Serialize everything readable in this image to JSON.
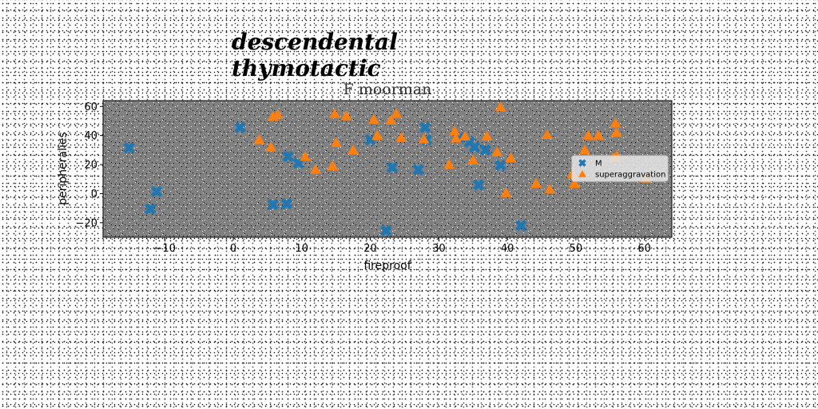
{
  "figure_title": "descendental thymotactic",
  "chart_data": {
    "type": "scatter",
    "title": "F moorman",
    "xlabel": "fireproof",
    "ylabel": "peripheralies",
    "xlim": [
      -19,
      64
    ],
    "ylim": [
      -30,
      64
    ],
    "xticks": [
      -10,
      0,
      10,
      20,
      30,
      40,
      50,
      60
    ],
    "yticks": [
      -20,
      0,
      20,
      40,
      60
    ],
    "xtick_labels": [
      "−10",
      "0",
      "10",
      "20",
      "30",
      "40",
      "50",
      "60"
    ],
    "ytick_labels": [
      "−20",
      "0",
      "20",
      "40",
      "60"
    ],
    "grid": false,
    "legend_position": "center-right",
    "series": [
      {
        "name": "M",
        "marker": "X",
        "color": "#1f77b4",
        "points": [
          [
            -15.2,
            31.5
          ],
          [
            -12.1,
            -10.5
          ],
          [
            -11.2,
            1.5
          ],
          [
            1.0,
            45.5
          ],
          [
            5.8,
            -7.5
          ],
          [
            7.8,
            -7.0
          ],
          [
            8.0,
            25.5
          ],
          [
            9.5,
            21.0
          ],
          [
            20.0,
            37.0
          ],
          [
            22.3,
            -25.5
          ],
          [
            23.2,
            18.0
          ],
          [
            27.0,
            16.5
          ],
          [
            28.0,
            45.5
          ],
          [
            28.2,
            37.0
          ],
          [
            33.0,
            38.5
          ],
          [
            34.5,
            35.5
          ],
          [
            35.2,
            32.0
          ],
          [
            35.8,
            6.0
          ],
          [
            36.8,
            30.0
          ],
          [
            39.0,
            19.5
          ],
          [
            42.0,
            -22.0
          ]
        ]
      },
      {
        "name": "superaggravation",
        "marker": "^",
        "color": "#ff7f0e",
        "points": [
          [
            3.8,
            37.0
          ],
          [
            5.5,
            32.0
          ],
          [
            5.8,
            53.0
          ],
          [
            6.5,
            54.5
          ],
          [
            10.5,
            25.5
          ],
          [
            12.0,
            16.5
          ],
          [
            14.5,
            19.0
          ],
          [
            14.8,
            55.0
          ],
          [
            15.0,
            35.0
          ],
          [
            16.5,
            53.5
          ],
          [
            17.5,
            30.0
          ],
          [
            20.5,
            51.0
          ],
          [
            21.0,
            40.0
          ],
          [
            23.0,
            50.5
          ],
          [
            23.8,
            55.0
          ],
          [
            24.5,
            38.5
          ],
          [
            27.8,
            37.5
          ],
          [
            31.5,
            20.0
          ],
          [
            32.3,
            43.0
          ],
          [
            32.5,
            38.0
          ],
          [
            33.8,
            39.5
          ],
          [
            35.0,
            23.0
          ],
          [
            37.0,
            39.5
          ],
          [
            38.5,
            28.5
          ],
          [
            39.0,
            59.5
          ],
          [
            39.8,
            0.5
          ],
          [
            40.5,
            24.5
          ],
          [
            44.2,
            7.0
          ],
          [
            45.8,
            40.5
          ],
          [
            46.2,
            3.0
          ],
          [
            49.5,
            13.5
          ],
          [
            49.8,
            7.0
          ],
          [
            51.3,
            30.0
          ],
          [
            51.8,
            40.0
          ],
          [
            53.3,
            40.0
          ],
          [
            55.5,
            25.0
          ],
          [
            55.8,
            48.5
          ],
          [
            55.9,
            42.0
          ],
          [
            56.0,
            26.0
          ],
          [
            60.2,
            10.5
          ]
        ]
      }
    ]
  }
}
